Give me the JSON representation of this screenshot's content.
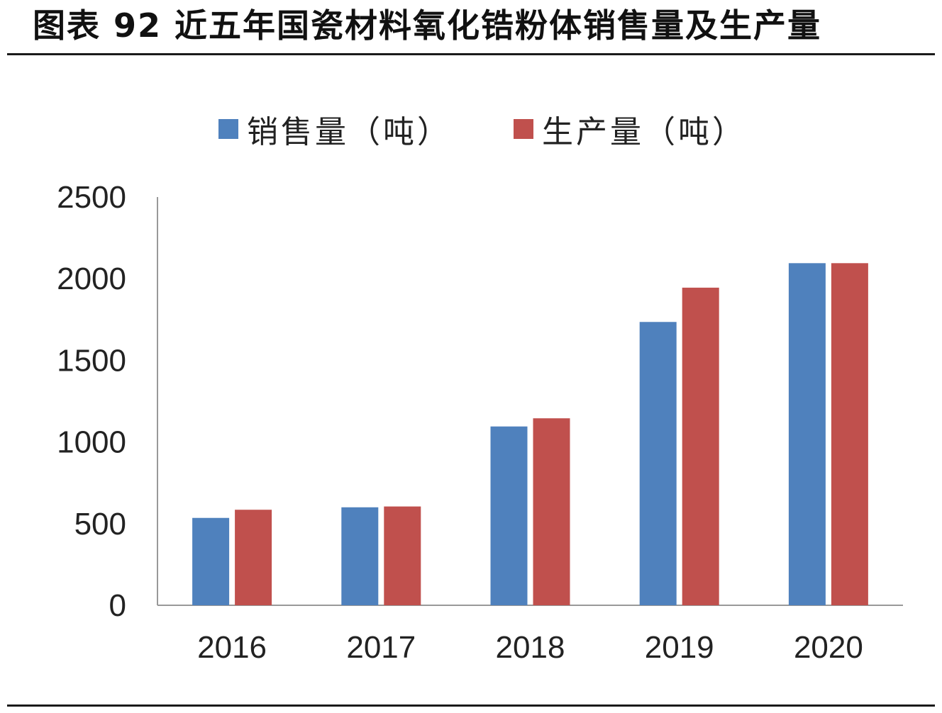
{
  "title": "图表 92 近五年国瓷材料氧化锆粉体销售量及生产量",
  "colors": {
    "sales": "#4F81BD",
    "production": "#C0504D",
    "axis": "#999999",
    "text": "#222222"
  },
  "chart_data": {
    "type": "bar",
    "title": "",
    "xlabel": "",
    "ylabel": "",
    "categories": [
      "2016",
      "2017",
      "2018",
      "2019",
      "2020"
    ],
    "series": [
      {
        "name": "销售量（吨）",
        "values": [
          535,
          600,
          1095,
          1735,
          2095
        ]
      },
      {
        "name": "生产量（吨）",
        "values": [
          585,
          605,
          1145,
          1945,
          2095
        ]
      }
    ],
    "ylim": [
      0,
      2500
    ],
    "yticks": [
      "0",
      "500",
      "1000",
      "1500",
      "2000",
      "2500"
    ],
    "grid": false,
    "legend": "top-center"
  }
}
